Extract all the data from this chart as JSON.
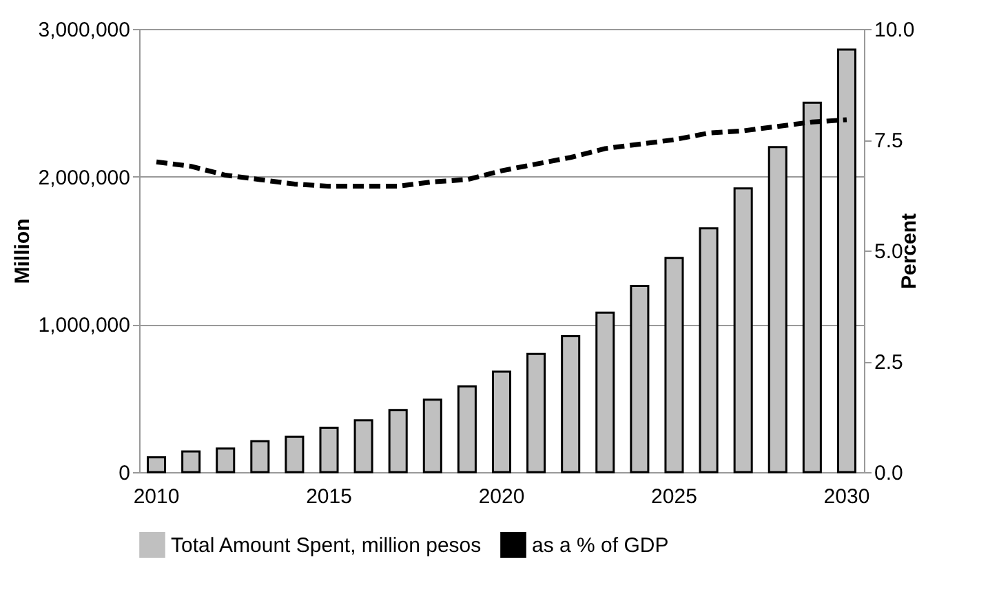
{
  "chart_data": {
    "type": "bar",
    "categories": [
      "2010",
      null,
      null,
      null,
      null,
      "2015",
      null,
      null,
      null,
      null,
      "2020",
      null,
      null,
      null,
      null,
      "2025",
      null,
      null,
      null,
      null,
      "2030"
    ],
    "series": [
      {
        "name": "Total Amount Spent, million pesos",
        "color": "#c0c0c0",
        "values": [
          100000,
          140000,
          160000,
          210000,
          240000,
          300000,
          350000,
          420000,
          490000,
          580000,
          680000,
          800000,
          920000,
          1080000,
          1260000,
          1450000,
          1650000,
          1920000,
          2200000,
          2500000,
          2860000
        ]
      },
      {
        "name": "as a % of GDP",
        "type": "line",
        "axis": "y2",
        "color": "#000000",
        "line_style": "dashed",
        "values": [
          7.0,
          6.9,
          6.7,
          6.6,
          6.5,
          6.45,
          6.45,
          6.45,
          6.55,
          6.6,
          6.8,
          6.95,
          7.1,
          7.3,
          7.4,
          7.5,
          7.65,
          7.7,
          7.8,
          7.9,
          7.95
        ]
      }
    ],
    "ylim": [
      0,
      3000000
    ],
    "yticks": [
      0,
      {
        "value": 1000000,
        "label": "1,000,000"
      },
      {
        "value": 2000000,
        "label": "2,000,000"
      },
      {
        "value": 3000000,
        "label": "3,000,000"
      }
    ],
    "y2lim": [
      0,
      10
    ],
    "y2ticks": [
      {
        "value": 0,
        "label": "0.0"
      },
      {
        "value": 2.5,
        "label": "2.5"
      },
      {
        "value": 5,
        "label": "5.0"
      },
      {
        "value": 7.5,
        "label": "7.5"
      },
      {
        "value": 10,
        "label": "10.0"
      }
    ],
    "ylabel": "Million",
    "y2label": "Percent",
    "grid": "y",
    "legend": "bottom"
  }
}
